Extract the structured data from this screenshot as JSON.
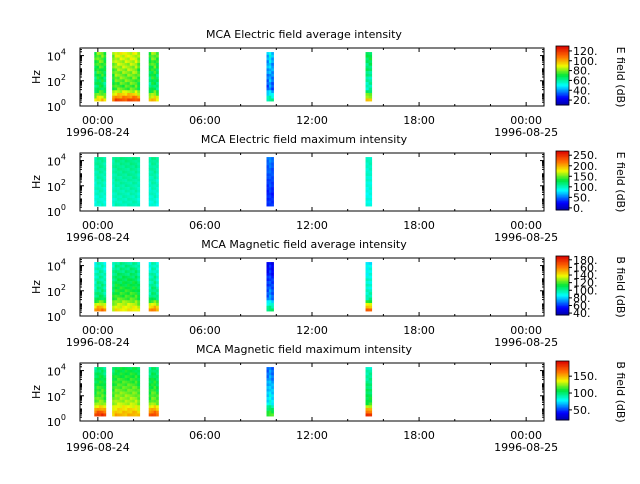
{
  "chart_data": [
    {
      "type": "heatmap",
      "title": "MCA  Electric field average intensity",
      "ylabel": "Hz",
      "y_scale": "log",
      "ylim": [
        1,
        40000
      ],
      "y_ticks": [
        {
          "value": 1,
          "label": "10",
          "exp": "0"
        },
        {
          "value": 100,
          "label": "10",
          "exp": "2"
        },
        {
          "value": 10000,
          "label": "10",
          "exp": "4"
        }
      ],
      "x_ticks": [
        "00:00",
        "06:00",
        "12:00",
        "18:00",
        "00:00"
      ],
      "x_start_date": "1996-08-24",
      "x_end_date": "1996-08-25",
      "xlim_hours": [
        -1.0,
        25.0
      ],
      "colorbar": {
        "label": "E field (dB)",
        "ticks": [
          "20.",
          "40.",
          "60.",
          "80.",
          "100.",
          "120."
        ],
        "range": [
          10,
          130
        ]
      },
      "data_segments": [
        {
          "start_hour": -0.2,
          "end_hour": 0.45,
          "low_db": 62,
          "high_db": 80,
          "low_freq_db": 95
        },
        {
          "start_hour": 0.8,
          "end_hour": 2.35,
          "low_db": 70,
          "high_db": 88,
          "low_freq_db": 115
        },
        {
          "start_hour": 2.85,
          "end_hour": 3.4,
          "low_db": 62,
          "high_db": 80,
          "low_freq_db": 100
        },
        {
          "start_hour": 9.45,
          "end_hour": 9.85,
          "low_db": 35,
          "high_db": 50,
          "low_freq_db": 65
        },
        {
          "start_hour": 15.0,
          "end_hour": 15.35,
          "low_db": 58,
          "high_db": 75,
          "low_freq_db": 100
        }
      ]
    },
    {
      "type": "heatmap",
      "title": "MCA  Electric field maximum intensity",
      "ylabel": "Hz",
      "y_scale": "log",
      "ylim": [
        1,
        40000
      ],
      "y_ticks": [
        {
          "value": 1,
          "label": "10",
          "exp": "0"
        },
        {
          "value": 100,
          "label": "10",
          "exp": "2"
        },
        {
          "value": 10000,
          "label": "10",
          "exp": "4"
        }
      ],
      "x_ticks": [
        "00:00",
        "06:00",
        "12:00",
        "18:00",
        "00:00"
      ],
      "x_start_date": "1996-08-24",
      "x_end_date": "1996-08-25",
      "xlim_hours": [
        -1.0,
        25.0
      ],
      "colorbar": {
        "label": "E field (dB)",
        "ticks": [
          "0.",
          "50.",
          "100.",
          "150.",
          "200.",
          "250."
        ],
        "range": [
          -10,
          270
        ]
      },
      "data_segments": [
        {
          "start_hour": -0.2,
          "end_hour": 0.45,
          "low_db": 95,
          "high_db": 110,
          "low_freq_db": 95
        },
        {
          "start_hour": 0.8,
          "end_hour": 2.35,
          "low_db": 98,
          "high_db": 112,
          "low_freq_db": 100
        },
        {
          "start_hour": 2.85,
          "end_hour": 3.4,
          "low_db": 95,
          "high_db": 110,
          "low_freq_db": 95
        },
        {
          "start_hour": 9.45,
          "end_hour": 9.85,
          "low_db": 30,
          "high_db": 55,
          "low_freq_db": 40
        },
        {
          "start_hour": 15.0,
          "end_hour": 15.35,
          "low_db": 90,
          "high_db": 105,
          "low_freq_db": 95
        }
      ]
    },
    {
      "type": "heatmap",
      "title": "MCA  Magnetic field average intensity",
      "ylabel": "Hz",
      "y_scale": "log",
      "ylim": [
        1,
        40000
      ],
      "y_ticks": [
        {
          "value": 1,
          "label": "10",
          "exp": "0"
        },
        {
          "value": 100,
          "label": "10",
          "exp": "2"
        },
        {
          "value": 10000,
          "label": "10",
          "exp": "4"
        }
      ],
      "x_ticks": [
        "00:00",
        "06:00",
        "12:00",
        "18:00",
        "00:00"
      ],
      "x_start_date": "1996-08-24",
      "x_end_date": "1996-08-25",
      "xlim_hours": [
        -1.0,
        25.0
      ],
      "colorbar": {
        "label": "B field (dB)",
        "ticks": [
          "40.",
          "60.",
          "80.",
          "100.",
          "120.",
          "140.",
          "160.",
          "180."
        ],
        "range": [
          35,
          190
        ]
      },
      "data_segments": [
        {
          "start_hour": -0.2,
          "end_hour": 0.45,
          "low_db": 110,
          "high_db": 95,
          "low_freq_db": 160
        },
        {
          "start_hour": 0.8,
          "end_hour": 2.35,
          "low_db": 125,
          "high_db": 100,
          "low_freq_db": 140
        },
        {
          "start_hour": 2.85,
          "end_hour": 3.4,
          "low_db": 110,
          "high_db": 95,
          "low_freq_db": 160
        },
        {
          "start_hour": 9.45,
          "end_hour": 9.85,
          "low_db": 80,
          "high_db": 55,
          "low_freq_db": 110
        },
        {
          "start_hour": 15.0,
          "end_hour": 15.35,
          "low_db": 105,
          "high_db": 92,
          "low_freq_db": 170
        }
      ]
    },
    {
      "type": "heatmap",
      "title": "MCA  Magnetic field maximum intensity",
      "ylabel": "Hz",
      "y_scale": "log",
      "ylim": [
        1,
        40000
      ],
      "y_ticks": [
        {
          "value": 1,
          "label": "10",
          "exp": "0"
        },
        {
          "value": 100,
          "label": "10",
          "exp": "2"
        },
        {
          "value": 10000,
          "label": "10",
          "exp": "4"
        }
      ],
      "x_ticks": [
        "00:00",
        "06:00",
        "12:00",
        "18:00",
        "00:00"
      ],
      "x_start_date": "1996-08-24",
      "x_end_date": "1996-08-25",
      "xlim_hours": [
        -1.0,
        25.0
      ],
      "colorbar": {
        "label": "B field (dB)",
        "ticks": [
          "50.",
          "100.",
          "150."
        ],
        "range": [
          20,
          195
        ]
      },
      "data_segments": [
        {
          "start_hour": -0.2,
          "end_hour": 0.45,
          "low_db": 130,
          "high_db": 100,
          "low_freq_db": 180
        },
        {
          "start_hour": 0.8,
          "end_hour": 2.35,
          "low_db": 135,
          "high_db": 105,
          "low_freq_db": 150
        },
        {
          "start_hour": 2.85,
          "end_hour": 3.4,
          "low_db": 130,
          "high_db": 100,
          "low_freq_db": 175
        },
        {
          "start_hour": 9.45,
          "end_hour": 9.85,
          "low_db": 90,
          "high_db": 60,
          "low_freq_db": 120
        },
        {
          "start_hour": 15.0,
          "end_hour": 15.35,
          "low_db": 120,
          "high_db": 95,
          "low_freq_db": 185
        }
      ]
    }
  ]
}
